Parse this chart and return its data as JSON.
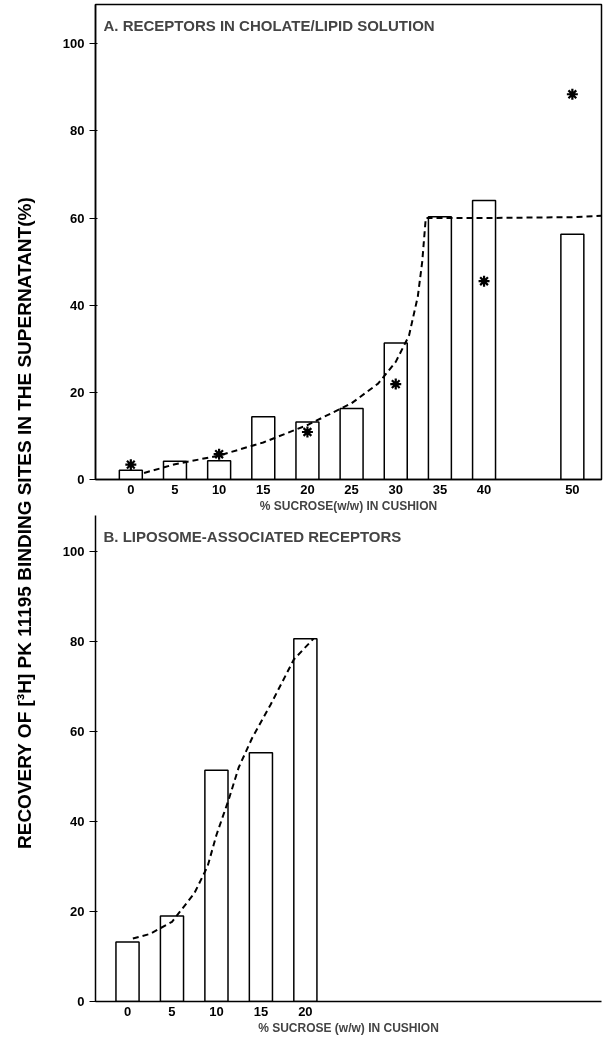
{
  "chart_data": [
    {
      "type": "bar",
      "title": "A.  RECEPTORS IN CHOLATE/LIPID SOLUTION",
      "xlabel": "% SUCROSE(w/w) IN CUSHION",
      "ylabel": "RECOVERY OF [³H] PK 11195 BINDING SITES IN THE SUPERNATANT(%)",
      "x": [
        0,
        5,
        10,
        15,
        20,
        25,
        30,
        35,
        40,
        50
      ],
      "xlim": [
        -4,
        53.3
      ],
      "xticks": [
        0,
        5,
        10,
        15,
        20,
        25,
        30,
        35,
        40,
        50
      ],
      "ylim": [
        0,
        109
      ],
      "yticks": [
        0,
        20,
        40,
        60,
        80,
        100
      ],
      "grid": false,
      "series": [
        {
          "color": "#ffffff",
          "values": [
            2.1,
            4.2,
            4.3,
            14.4,
            13.2,
            16.3,
            31.3,
            60.3,
            64.0,
            56.3
          ]
        },
        {
          "type": "scatter",
          "marker": "cross",
          "color": "#000000",
          "x": [
            0,
            10,
            20,
            30,
            40,
            50
          ],
          "values": [
            3.4,
            5.8,
            10.9,
            21.9,
            45.5,
            88.4
          ]
        },
        {
          "type": "line",
          "line_style": "dashed",
          "color": "#000000",
          "x": [
            1.5,
            5,
            10,
            15,
            20,
            25,
            28,
            30,
            31.5,
            32.5,
            33,
            33.4,
            35,
            40,
            50,
            53.3
          ],
          "values": [
            1.5,
            3.5,
            5.5,
            8.5,
            12.5,
            17.5,
            22,
            27,
            33,
            42,
            50,
            60,
            60,
            60,
            60.2,
            60.5
          ]
        }
      ]
    },
    {
      "type": "bar",
      "title": "B.  LIPOSOME-ASSOCIATED RECEPTORS",
      "xlabel": "% SUCROSE (w/w) IN CUSHION",
      "x": [
        0,
        5,
        10,
        15,
        20
      ],
      "xlim": [
        -3.6,
        53.3
      ],
      "xticks": [
        0,
        5,
        10,
        15,
        20
      ],
      "ylim": [
        0,
        108
      ],
      "yticks": [
        0,
        20,
        40,
        60,
        80,
        100
      ],
      "grid": false,
      "series": [
        {
          "color": "#ffffff",
          "values": [
            13.2,
            19.0,
            51.4,
            55.3,
            80.6
          ]
        },
        {
          "type": "line",
          "line_style": "dashed",
          "color": "#000000",
          "x": [
            0.6,
            2.5,
            5,
            7.5,
            9,
            10,
            11.4,
            12.5,
            14,
            16.1,
            18.7,
            20.9
          ],
          "values": [
            14,
            15,
            17.7,
            24,
            30,
            37,
            45,
            52,
            58.5,
            66,
            76,
            80.6
          ]
        }
      ]
    }
  ]
}
